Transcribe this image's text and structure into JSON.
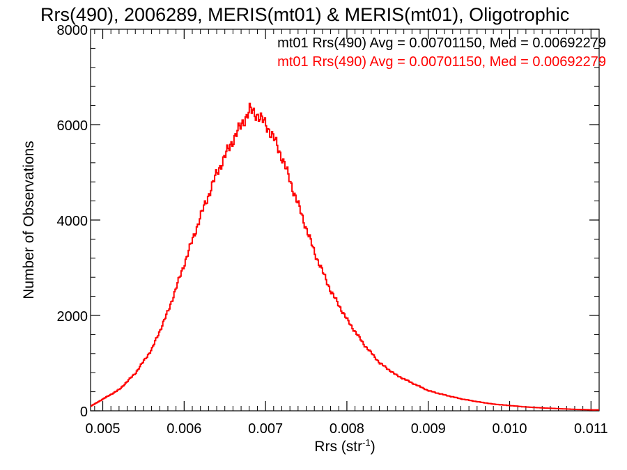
{
  "chart_data": {
    "type": "histogram",
    "title": "Rrs(490), 2006289, MERIS(mt01) & MERIS(mt01), Oligotrophic",
    "xlabel": {
      "main": "Rrs (str",
      "sup": "-1",
      "close": ")"
    },
    "ylabel": "Number of Observations",
    "xlim": [
      0.00485,
      0.0111
    ],
    "ylim": [
      0,
      8000
    ],
    "x_ticks": [
      0.005,
      0.006,
      0.007,
      0.008,
      0.009,
      0.01,
      0.011
    ],
    "x_tick_labels": [
      "0.005",
      "0.006",
      "0.007",
      "0.008",
      "0.009",
      "0.010",
      "0.011"
    ],
    "y_ticks": [
      0,
      2000,
      4000,
      6000,
      8000
    ],
    "y_tick_labels": [
      "0",
      "2000",
      "4000",
      "6000",
      "8000"
    ],
    "grid": false,
    "legend_position": "top-right",
    "legend": [
      {
        "text": "mt01 Rrs(490) Avg = 0.00701150, Med = 0.00692279",
        "color": "#000000"
      },
      {
        "text": "mt01 Rrs(490) Avg = 0.00701150, Med = 0.00692279",
        "color": "#ff0000"
      }
    ],
    "series": [
      {
        "color": "#ff0000",
        "x": [
          0.00485,
          0.005,
          0.0052,
          0.0054,
          0.0056,
          0.0058,
          0.006,
          0.0062,
          0.0064,
          0.0066,
          0.0067,
          0.0068,
          0.0069,
          0.007,
          0.0071,
          0.0072,
          0.0074,
          0.0076,
          0.0078,
          0.008,
          0.0082,
          0.0084,
          0.0086,
          0.0088,
          0.009,
          0.0092,
          0.0094,
          0.0096,
          0.0098,
          0.01,
          0.0102,
          0.0104,
          0.0106,
          0.0108,
          0.011
        ],
        "y": [
          100,
          250,
          450,
          800,
          1300,
          2100,
          3100,
          4100,
          5000,
          5700,
          6000,
          6300,
          6200,
          6000,
          5700,
          5300,
          4300,
          3300,
          2500,
          1900,
          1400,
          1000,
          750,
          580,
          420,
          330,
          250,
          190,
          140,
          110,
          80,
          60,
          45,
          30,
          20
        ]
      }
    ]
  }
}
